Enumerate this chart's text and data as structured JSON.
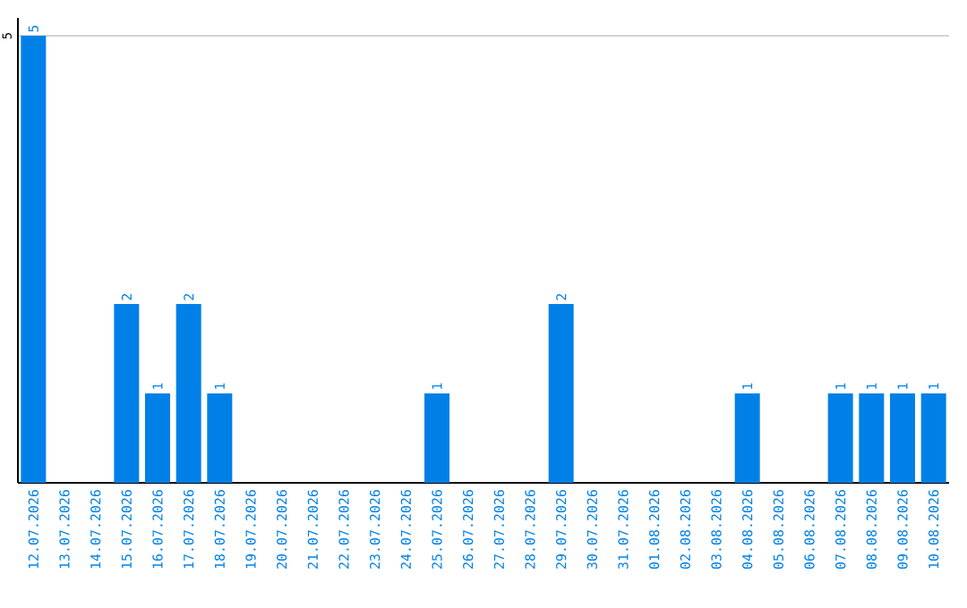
{
  "chart_data": {
    "type": "bar",
    "categories": [
      "12.07.2026",
      "13.07.2026",
      "14.07.2026",
      "15.07.2026",
      "16.07.2026",
      "17.07.2026",
      "18.07.2026",
      "19.07.2026",
      "20.07.2026",
      "21.07.2026",
      "22.07.2026",
      "23.07.2026",
      "24.07.2026",
      "25.07.2026",
      "26.07.2026",
      "27.07.2026",
      "28.07.2026",
      "29.07.2026",
      "30.07.2026",
      "31.07.2026",
      "01.08.2026",
      "02.08.2026",
      "03.08.2026",
      "04.08.2026",
      "05.08.2026",
      "06.08.2026",
      "07.08.2026",
      "08.08.2026",
      "09.08.2026",
      "10.08.2026"
    ],
    "values": [
      5,
      0,
      0,
      2,
      1,
      2,
      1,
      0,
      0,
      0,
      0,
      0,
      0,
      1,
      0,
      0,
      0,
      2,
      0,
      0,
      0,
      0,
      0,
      1,
      0,
      0,
      1,
      1,
      1,
      1
    ],
    "value_labels": [
      "5",
      null,
      null,
      "2",
      "1",
      "2",
      "1",
      null,
      null,
      null,
      null,
      null,
      null,
      "1",
      null,
      null,
      null,
      "2",
      null,
      null,
      null,
      null,
      null,
      "1",
      null,
      null,
      "1",
      "1",
      "1",
      "1"
    ],
    "color": "#0080e6",
    "ylim": [
      0,
      5.2
    ],
    "yticks": [
      5
    ],
    "grid": "y"
  }
}
